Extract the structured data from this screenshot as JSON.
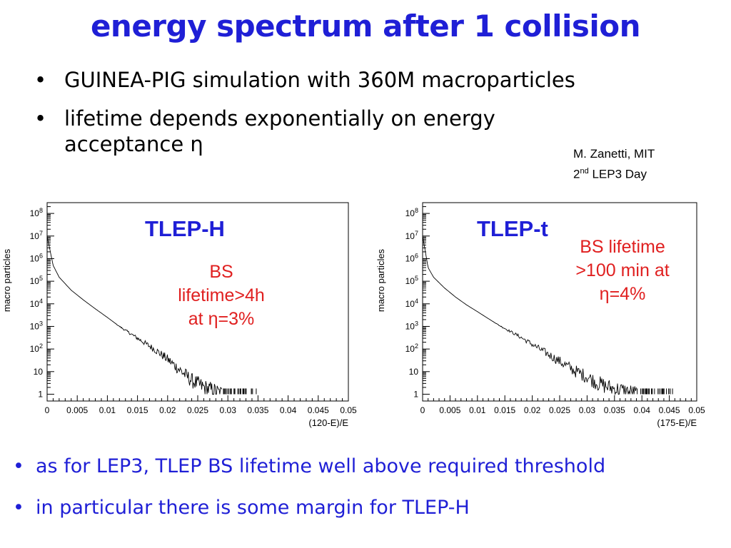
{
  "title": "energy spectrum after 1 collision",
  "bullets_top": [
    "GUINEA-PIG simulation with 360M macroparticles",
    "lifetime depends exponentially on energy acceptance η"
  ],
  "credit": {
    "line1": "M. Zanetti, MIT",
    "line2_pre": "2",
    "line2_sup": "nd",
    "line2_post": " LEP3 Day"
  },
  "bullet_char": "•",
  "bullets_bottom": [
    "as for LEP3, TLEP BS lifetime well above required threshold",
    "in particular there is some margin for TLEP-H"
  ],
  "charts": {
    "left": {
      "name": "TLEP-H",
      "annotation": [
        "BS",
        "lifetime>4h",
        "at η=3%"
      ]
    },
    "right": {
      "name": "TLEP-t",
      "annotation": [
        "BS lifetime",
        ">100 min at",
        "η=4%"
      ]
    }
  },
  "chart_data": [
    {
      "type": "line",
      "title": "",
      "xlabel": "(120-E)/E",
      "ylabel": "macro particles",
      "yscale": "log",
      "xlim": [
        0,
        0.05
      ],
      "ylim": [
        0.5,
        300000000
      ],
      "xticks": [
        "0",
        "0.005",
        "0.01",
        "0.015",
        "0.02",
        "0.025",
        "0.03",
        "0.035",
        "0.04",
        "0.045",
        "0.05"
      ],
      "yticks": [
        "1",
        "10",
        "10^2",
        "10^3",
        "10^4",
        "10^5",
        "10^6",
        "10^7",
        "10^8"
      ],
      "x": [
        0,
        0.001,
        0.002,
        0.004,
        0.006,
        0.008,
        0.01,
        0.012,
        0.014,
        0.016,
        0.018,
        0.02,
        0.022,
        0.024,
        0.026,
        0.029
      ],
      "y": [
        10000000,
        500000,
        150000,
        40000,
        15000,
        6000,
        2500,
        1000,
        450,
        200,
        90,
        35,
        12,
        4,
        2,
        1
      ]
    },
    {
      "type": "line",
      "title": "",
      "xlabel": "(175-E)/E",
      "ylabel": "macro particles",
      "yscale": "log",
      "xlim": [
        0,
        0.05
      ],
      "ylim": [
        0.5,
        300000000
      ],
      "xticks": [
        "0",
        "0.005",
        "0.01",
        "0.015",
        "0.02",
        "0.025",
        "0.03",
        "0.035",
        "0.04",
        "0.045",
        "0.05"
      ],
      "yticks": [
        "1",
        "10",
        "10^2",
        "10^3",
        "10^4",
        "10^5",
        "10^6",
        "10^7",
        "10^8"
      ],
      "x": [
        0,
        0.001,
        0.002,
        0.004,
        0.006,
        0.008,
        0.01,
        0.012,
        0.014,
        0.016,
        0.018,
        0.02,
        0.022,
        0.024,
        0.026,
        0.028,
        0.03,
        0.032,
        0.034,
        0.036,
        0.039
      ],
      "y": [
        10000000,
        400000,
        150000,
        50000,
        20000,
        9000,
        4500,
        2200,
        1100,
        600,
        320,
        160,
        80,
        40,
        20,
        10,
        6,
        3,
        2,
        1.5,
        1
      ]
    }
  ]
}
